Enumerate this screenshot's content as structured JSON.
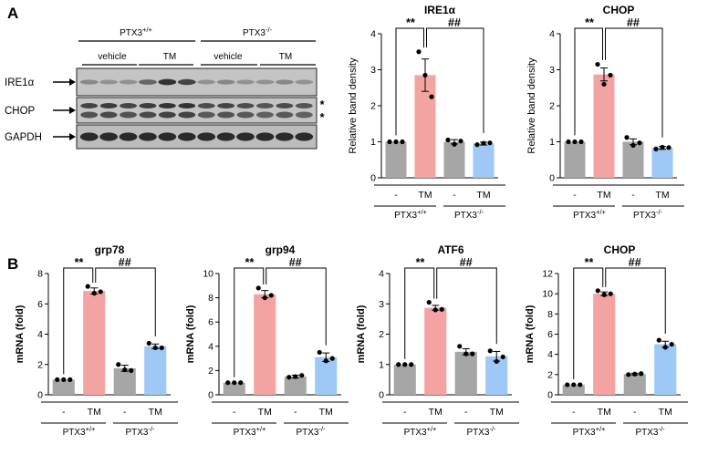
{
  "panel_labels": {
    "a": "A",
    "b": "B"
  },
  "blot": {
    "groups": [
      "PTX3+/+",
      "PTX3-/-"
    ],
    "group_base": "PTX3",
    "group_sups": [
      "+/+",
      "-/-"
    ],
    "treatments": [
      "vehicle",
      "TM",
      "vehicle",
      "TM"
    ],
    "bands": [
      "IRE1α",
      "CHOP",
      "GAPDH"
    ],
    "nonspecific_marks": [
      "*",
      "*"
    ]
  },
  "colors": {
    "control": "#a6a6a6",
    "tm_wt": "#f4a3a3",
    "ko": "#a6a6a6",
    "tm_ko": "#9ec8f5"
  },
  "chart_data": [
    {
      "type": "bar",
      "id": "wb-ire1a",
      "title": "IRE1α",
      "ylabel": "Relative band density",
      "ylim": [
        0,
        4
      ],
      "yticks": [
        0,
        1,
        2,
        3,
        4
      ],
      "categories": [
        "-",
        "TM",
        "-",
        "TM"
      ],
      "groups": [
        "PTX3+/+",
        "PTX3-/-"
      ],
      "values": [
        1.0,
        2.85,
        1.0,
        0.95
      ],
      "errors": [
        0.0,
        0.45,
        0.06,
        0.04
      ],
      "points": [
        [
          1.0,
          1.0,
          1.0
        ],
        [
          3.5,
          2.85,
          2.25
        ],
        [
          1.05,
          0.93,
          1.02
        ],
        [
          0.92,
          0.96,
          0.97
        ]
      ],
      "significance": [
        "**",
        "##"
      ]
    },
    {
      "type": "bar",
      "id": "wb-chop",
      "title": "CHOP",
      "ylabel": "Relative band density",
      "ylim": [
        0,
        4
      ],
      "yticks": [
        0,
        1,
        2,
        3,
        4
      ],
      "categories": [
        "-",
        "TM",
        "-",
        "TM"
      ],
      "groups": [
        "PTX3+/+",
        "PTX3-/-"
      ],
      "values": [
        1.0,
        2.87,
        1.0,
        0.83
      ],
      "errors": [
        0.0,
        0.18,
        0.08,
        0.04
      ],
      "points": [
        [
          1.0,
          1.0,
          1.0
        ],
        [
          3.15,
          2.6,
          2.85
        ],
        [
          1.12,
          0.9,
          0.97
        ],
        [
          0.8,
          0.85,
          0.84
        ]
      ],
      "significance": [
        "**",
        "##"
      ]
    },
    {
      "type": "bar",
      "id": "qpcr-grp78",
      "title": "grp78",
      "ylabel": "mRNA (fold)",
      "ylim": [
        0,
        8
      ],
      "yticks": [
        0,
        2,
        4,
        6,
        8
      ],
      "categories": [
        "-",
        "TM",
        "-",
        "TM"
      ],
      "groups": [
        "PTX3+/+",
        "PTX3-/-"
      ],
      "values": [
        1.0,
        6.85,
        1.75,
        3.2
      ],
      "errors": [
        0.0,
        0.2,
        0.2,
        0.15
      ],
      "points": [
        [
          1.0,
          1.0,
          1.0
        ],
        [
          7.15,
          6.7,
          6.8
        ],
        [
          2.0,
          1.65,
          1.6
        ],
        [
          3.4,
          3.1,
          3.1
        ]
      ],
      "significance": [
        "**",
        "##"
      ]
    },
    {
      "type": "bar",
      "id": "qpcr-grp94",
      "title": "grp94",
      "ylabel": "mRNA (fold)",
      "ylim": [
        0,
        10
      ],
      "yticks": [
        0,
        2,
        4,
        6,
        8,
        10
      ],
      "categories": [
        "-",
        "TM",
        "-",
        "TM"
      ],
      "groups": [
        "PTX3+/+",
        "PTX3-/-"
      ],
      "values": [
        1.0,
        8.3,
        1.5,
        3.1
      ],
      "errors": [
        0.0,
        0.3,
        0.12,
        0.35
      ],
      "points": [
        [
          1.0,
          1.0,
          1.0
        ],
        [
          8.8,
          8.0,
          8.2
        ],
        [
          1.45,
          1.5,
          1.6
        ],
        [
          3.5,
          2.8,
          3.0
        ]
      ],
      "significance": [
        "**",
        "##"
      ]
    },
    {
      "type": "bar",
      "id": "qpcr-atf6",
      "title": "ATF6",
      "ylabel": "mRNA (fold)",
      "ylim": [
        0,
        4
      ],
      "yticks": [
        0,
        1,
        2,
        3,
        4
      ],
      "categories": [
        "-",
        "TM",
        "-",
        "TM"
      ],
      "groups": [
        "PTX3+/+",
        "PTX3-/-"
      ],
      "values": [
        1.0,
        2.87,
        1.42,
        1.27
      ],
      "errors": [
        0.0,
        0.08,
        0.1,
        0.16
      ],
      "points": [
        [
          1.0,
          1.0,
          1.0
        ],
        [
          3.05,
          2.8,
          2.82
        ],
        [
          1.6,
          1.35,
          1.35
        ],
        [
          1.45,
          1.1,
          1.25
        ]
      ],
      "significance": [
        "**",
        "##"
      ]
    },
    {
      "type": "bar",
      "id": "qpcr-chop",
      "title": "CHOP",
      "ylabel": "mRNA (fold)",
      "ylim": [
        0,
        12
      ],
      "yticks": [
        0,
        2,
        4,
        6,
        8,
        10,
        12
      ],
      "categories": [
        "-",
        "TM",
        "-",
        "TM"
      ],
      "groups": [
        "PTX3+/+",
        "PTX3-/-"
      ],
      "values": [
        1.0,
        10.0,
        2.05,
        5.0
      ],
      "errors": [
        0.0,
        0.18,
        0.08,
        0.3
      ],
      "points": [
        [
          1.0,
          1.0,
          1.0
        ],
        [
          10.3,
          9.9,
          10.0
        ],
        [
          2.0,
          2.05,
          2.1
        ],
        [
          5.4,
          4.7,
          5.0
        ]
      ],
      "significance": [
        "**",
        "##"
      ]
    }
  ]
}
